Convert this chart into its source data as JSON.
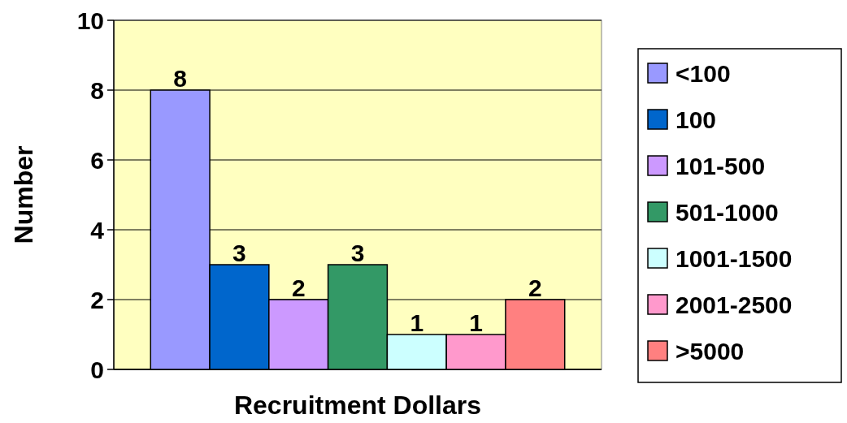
{
  "chart_data": {
    "type": "bar",
    "xlabel": "Recruitment Dollars",
    "ylabel": "Number",
    "categories": [
      null
    ],
    "series": [
      {
        "name": "<100",
        "color": "#9999ff",
        "values": [
          8
        ]
      },
      {
        "name": "100",
        "color": "#0066cc",
        "values": [
          3
        ]
      },
      {
        "name": "101-500",
        "color": "#cc99ff",
        "values": [
          2
        ]
      },
      {
        "name": "501-1000",
        "color": "#339966",
        "values": [
          3
        ]
      },
      {
        "name": "1001-1500",
        "color": "#ccffff",
        "values": [
          1
        ]
      },
      {
        "name": "2001-2500",
        "color": "#ff99cc",
        "values": [
          1
        ]
      },
      {
        "name": ">5000",
        "color": "#ff8080",
        "values": [
          2
        ]
      }
    ],
    "ylim": [
      0,
      10
    ],
    "yticks": [
      0,
      2,
      4,
      6,
      8,
      10
    ],
    "grid": "y",
    "legend": "right",
    "data_labels": true
  }
}
